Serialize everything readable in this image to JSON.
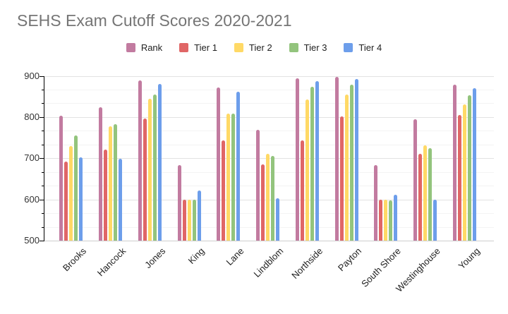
{
  "chart_data": {
    "type": "bar",
    "title": "SEHS Exam Cutoff Scores 2020-2021",
    "xlabel": "",
    "ylabel": "",
    "ylim": [
      500,
      900
    ],
    "y_major_ticks": [
      500,
      600,
      700,
      800,
      900
    ],
    "minor_gridlines_per_major": 2,
    "grid": true,
    "legend_position": "top",
    "categories": [
      "Brooks",
      "Hancock",
      "Jones",
      "King",
      "Lane",
      "Lindblom",
      "Northside",
      "Payton",
      "South Shore",
      "Westinghouse",
      "Young"
    ],
    "series": [
      {
        "name": "Rank",
        "color": "#c27ba0",
        "values": [
          804,
          823,
          889,
          683,
          872,
          769,
          894,
          898,
          683,
          795,
          879
        ]
      },
      {
        "name": "Tier 1",
        "color": "#e06666",
        "values": [
          692,
          721,
          796,
          600,
          744,
          685,
          744,
          802,
          600,
          710,
          805
        ]
      },
      {
        "name": "Tier 2",
        "color": "#ffd966",
        "values": [
          730,
          777,
          845,
          600,
          808,
          710,
          842,
          855,
          600,
          732,
          831
        ]
      },
      {
        "name": "Tier 3",
        "color": "#93c47d",
        "values": [
          755,
          782,
          854,
          600,
          808,
          705,
          873,
          878,
          598,
          724,
          853
        ]
      },
      {
        "name": "Tier 4",
        "color": "#6d9eeb",
        "values": [
          702,
          698,
          880,
          622,
          861,
          603,
          887,
          893,
          611,
          600,
          870
        ]
      }
    ],
    "colors": {
      "title_text": "#757575",
      "axis_line": "#000000",
      "major_gridline": "#e2e2e2",
      "minor_gridline": "#f3f3f3",
      "label_text": "#222222"
    }
  }
}
